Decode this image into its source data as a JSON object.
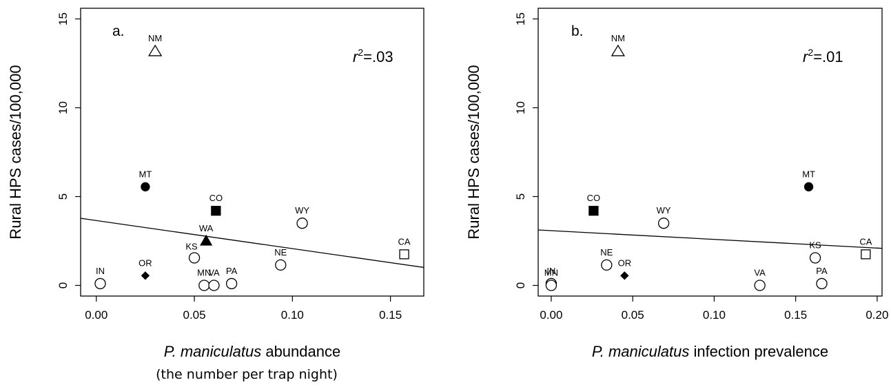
{
  "chart_data": [
    {
      "type": "scatter",
      "panel_label": "a.",
      "ylabel": "Rural HPS cases/100,000",
      "xlabel_italic": "P. maniculatus",
      "xlabel_rest": " abundance",
      "xlabel_line2": "(the number per trap night)",
      "r2_prefix": "r",
      "r2_sup": "2",
      "r2_value": "=.03",
      "xlim": [
        -0.008,
        0.167
      ],
      "ylim": [
        -0.6,
        15.6
      ],
      "xticks": [
        "0.00",
        "0.05",
        "0.10",
        "0.15"
      ],
      "xtick_values": [
        0.0,
        0.05,
        0.1,
        0.15
      ],
      "yticks": [
        "0",
        "5",
        "10",
        "15"
      ],
      "ytick_values": [
        0,
        5,
        10,
        15
      ],
      "regression": {
        "intercept": 3.65,
        "slope": -15.8
      },
      "points": [
        {
          "label": "NM",
          "x": 0.03,
          "y": 13.2,
          "marker": "open-triangle",
          "label_pos": "above"
        },
        {
          "label": "MT",
          "x": 0.025,
          "y": 5.55,
          "marker": "filled-circle",
          "label_pos": "above"
        },
        {
          "label": "CO",
          "x": 0.061,
          "y": 4.2,
          "marker": "filled-square",
          "label_pos": "above"
        },
        {
          "label": "WY",
          "x": 0.105,
          "y": 3.5,
          "marker": "open-circle",
          "label_pos": "above"
        },
        {
          "label": "WA",
          "x": 0.056,
          "y": 2.5,
          "marker": "filled-triangle",
          "label_pos": "above"
        },
        {
          "label": "KS",
          "x": 0.05,
          "y": 1.55,
          "marker": "open-circle",
          "label_pos": "above-left"
        },
        {
          "label": "NE",
          "x": 0.094,
          "y": 1.15,
          "marker": "open-circle",
          "label_pos": "above"
        },
        {
          "label": "CA",
          "x": 0.157,
          "y": 1.75,
          "marker": "open-square",
          "label_pos": "above"
        },
        {
          "label": "IN",
          "x": 0.002,
          "y": 0.1,
          "marker": "open-circle",
          "label_pos": "above"
        },
        {
          "label": "OR",
          "x": 0.025,
          "y": 0.55,
          "marker": "filled-diamond",
          "label_pos": "above"
        },
        {
          "label": "MN",
          "x": 0.055,
          "y": 0.0,
          "marker": "open-circle",
          "label_pos": "above"
        },
        {
          "label": "VA",
          "x": 0.06,
          "y": 0.0,
          "marker": "open-circle",
          "label_pos": "above"
        },
        {
          "label": "PA",
          "x": 0.069,
          "y": 0.1,
          "marker": "open-circle",
          "label_pos": "above"
        }
      ]
    },
    {
      "type": "scatter",
      "panel_label": "b.",
      "ylabel": "Rural HPS cases/100,000",
      "xlabel_italic": "P. maniculatus",
      "xlabel_rest": " infection prevalence",
      "xlabel_line2": "",
      "r2_prefix": "r",
      "r2_sup": "2",
      "r2_value": "=.01",
      "xlim": [
        -0.008,
        0.203
      ],
      "ylim": [
        -0.6,
        15.6
      ],
      "xticks": [
        "0.00",
        "0.05",
        "0.10",
        "0.15",
        "0.20"
      ],
      "xtick_values": [
        0.0,
        0.05,
        0.1,
        0.15,
        0.2
      ],
      "yticks": [
        "0",
        "5",
        "10",
        "15"
      ],
      "ytick_values": [
        0,
        5,
        10,
        15
      ],
      "regression": {
        "intercept": 3.08,
        "slope": -4.9
      },
      "points": [
        {
          "label": "NM",
          "x": 0.041,
          "y": 13.2,
          "marker": "open-triangle",
          "label_pos": "above"
        },
        {
          "label": "MT",
          "x": 0.158,
          "y": 5.55,
          "marker": "filled-circle",
          "label_pos": "above"
        },
        {
          "label": "CO",
          "x": 0.026,
          "y": 4.2,
          "marker": "filled-square",
          "label_pos": "above"
        },
        {
          "label": "WY",
          "x": 0.069,
          "y": 3.5,
          "marker": "open-circle",
          "label_pos": "above"
        },
        {
          "label": "NE",
          "x": 0.034,
          "y": 1.15,
          "marker": "open-circle",
          "label_pos": "above"
        },
        {
          "label": "OR",
          "x": 0.045,
          "y": 0.55,
          "marker": "filled-diamond",
          "label_pos": "above"
        },
        {
          "label": "KS",
          "x": 0.162,
          "y": 1.55,
          "marker": "open-circle",
          "label_pos": "above"
        },
        {
          "label": "CA",
          "x": 0.193,
          "y": 1.75,
          "marker": "open-square",
          "label_pos": "above"
        },
        {
          "label": "VA",
          "x": 0.128,
          "y": 0.0,
          "marker": "open-circle",
          "label_pos": "above"
        },
        {
          "label": "PA",
          "x": 0.166,
          "y": 0.1,
          "marker": "open-circle",
          "label_pos": "above"
        },
        {
          "label": "IN",
          "x": 0.0,
          "y": 0.1,
          "marker": "open-circle",
          "label_pos": "above"
        },
        {
          "label": "MN",
          "x": 0.0,
          "y": 0.0,
          "marker": "open-circle",
          "label_pos": "above"
        }
      ]
    }
  ]
}
